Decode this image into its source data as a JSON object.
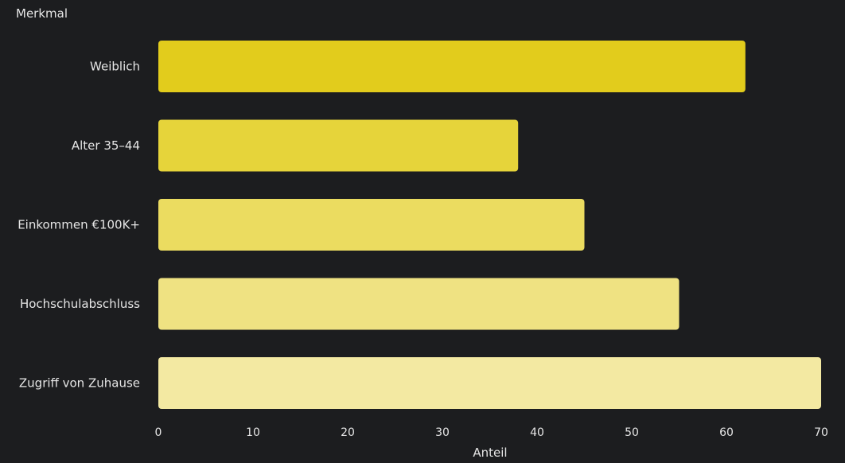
{
  "chart_data": {
    "type": "bar",
    "orientation": "horizontal",
    "y_axis_title": "Merkmal",
    "x_axis_title": "Anteil",
    "categories": [
      "Weiblich",
      "Alter 35–44",
      "Einkommen €100K+",
      "Hochschulabschluss",
      "Zugriff von Zuhause"
    ],
    "values": [
      62,
      38,
      45,
      55,
      70
    ],
    "bar_colors": [
      "#e2cc1c",
      "#e6d43a",
      "#ebdc60",
      "#efe282",
      "#f3e9a2"
    ],
    "xlim": [
      0,
      70
    ],
    "x_ticks": [
      0,
      10,
      20,
      30,
      40,
      50,
      60,
      70
    ],
    "grid": false,
    "legend": "none"
  }
}
